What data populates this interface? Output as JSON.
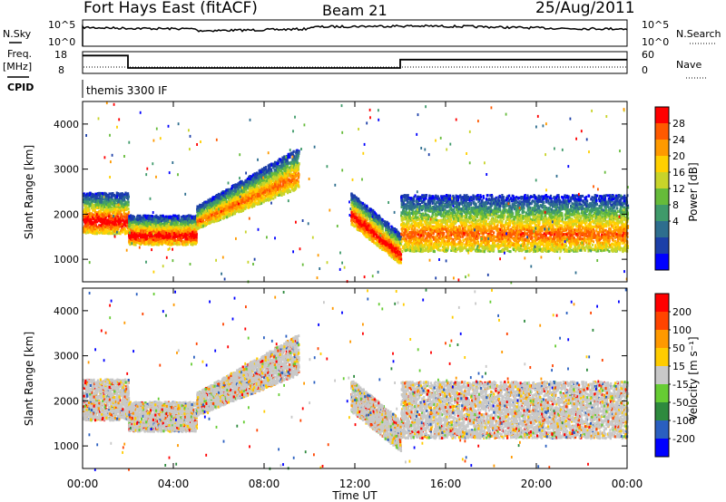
{
  "header": {
    "station": "Fort Hays East (fitACF)",
    "beam": "Beam 21",
    "date": "25/Aug/2011"
  },
  "strip": {
    "nsky_label": "N.Sky",
    "nsky_ticks": [
      "10^5",
      "10^0"
    ],
    "nsearch_label": "N.Search",
    "nsearch_ticks": [
      "10^5",
      "10^0"
    ],
    "freq_label": "Freq.",
    "freq_unit": "[MHz]",
    "freq_ticks": [
      "18",
      "8"
    ],
    "nave_label": "Nave",
    "nave_ticks": [
      "60",
      "0"
    ],
    "cpid_label": "CPID",
    "cpid_text": "themis 3300 IF",
    "freq_step_hours": [
      [
        0,
        2,
        17
      ],
      [
        2,
        14,
        11
      ],
      [
        14,
        24,
        15
      ]
    ]
  },
  "chart_data": [
    {
      "type": "heatmap",
      "title": "",
      "xlabel": "",
      "ylabel": "Slant Range [km]",
      "xlim": [
        0,
        24
      ],
      "ylim": [
        500,
        4500
      ],
      "x_ticks": [
        "00:00",
        "04:00",
        "08:00",
        "12:00",
        "16:00",
        "20:00",
        "00:00"
      ],
      "y_ticks": [
        1000,
        2000,
        3000,
        4000
      ],
      "colorbar_label": "Power [dB]",
      "colorbar_ticks": [
        "28",
        "24",
        "20",
        "16",
        "12",
        "8",
        "4"
      ],
      "colorbar_colors": [
        "#0000ff",
        "#1c3fa8",
        "#2e6e8e",
        "#3f9a6a",
        "#66bb3a",
        "#c8d42a",
        "#ffd000",
        "#ff9a00",
        "#ff5a00",
        "#ff0000"
      ],
      "bands": [
        {
          "x": [
            0,
            2
          ],
          "y": [
            1600,
            2500
          ],
          "level": "high"
        },
        {
          "x": [
            2,
            5
          ],
          "y": [
            1350,
            2000
          ],
          "level": "high"
        },
        {
          "x": [
            5,
            9.5
          ],
          "y": [
            1700,
            3500
          ],
          "level": "mid"
        },
        {
          "x": [
            11.8,
            14
          ],
          "y": [
            900,
            2500
          ],
          "level": "high"
        },
        {
          "x": [
            14,
            24
          ],
          "y": [
            1200,
            2450
          ],
          "level": "mid"
        }
      ]
    },
    {
      "type": "heatmap",
      "title": "",
      "xlabel": "Time UT",
      "ylabel": "Slant Range [km]",
      "xlim": [
        0,
        24
      ],
      "ylim": [
        500,
        4500
      ],
      "x_ticks": [
        "00:00",
        "04:00",
        "08:00",
        "12:00",
        "16:00",
        "20:00",
        "00:00"
      ],
      "y_ticks": [
        1000,
        2000,
        3000,
        4000
      ],
      "colorbar_label": "Velocity [m s⁻¹]",
      "colorbar_ticks": [
        "200",
        "100",
        "50",
        "15",
        "-15",
        "-50",
        "-100",
        "-200"
      ],
      "colorbar_colors": [
        "#0000ff",
        "#2a5fc0",
        "#2e8a3e",
        "#66cc33",
        "#c8c8c8",
        "#ffcc00",
        "#ff9900",
        "#ff4400",
        "#ff0000"
      ],
      "bands": [
        {
          "x": [
            0,
            2
          ],
          "y": [
            1600,
            2500
          ],
          "level": "low"
        },
        {
          "x": [
            2,
            5
          ],
          "y": [
            1350,
            2000
          ],
          "level": "low"
        },
        {
          "x": [
            5,
            9.5
          ],
          "y": [
            1700,
            3500
          ],
          "level": "low"
        },
        {
          "x": [
            11.8,
            14
          ],
          "y": [
            900,
            2500
          ],
          "level": "low"
        },
        {
          "x": [
            14,
            24
          ],
          "y": [
            1200,
            2450
          ],
          "level": "low"
        }
      ]
    }
  ]
}
